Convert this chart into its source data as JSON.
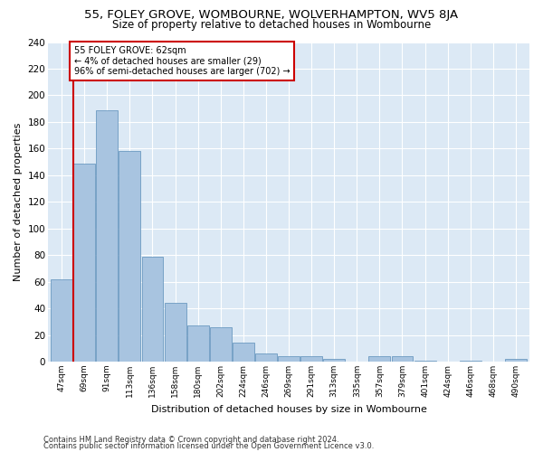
{
  "title": "55, FOLEY GROVE, WOMBOURNE, WOLVERHAMPTON, WV5 8JA",
  "subtitle": "Size of property relative to detached houses in Wombourne",
  "xlabel": "Distribution of detached houses by size in Wombourne",
  "ylabel": "Number of detached properties",
  "footer_line1": "Contains HM Land Registry data © Crown copyright and database right 2024.",
  "footer_line2": "Contains public sector information licensed under the Open Government Licence v3.0.",
  "annotation_title": "55 FOLEY GROVE: 62sqm",
  "annotation_line1": "← 4% of detached houses are smaller (29)",
  "annotation_line2": "96% of semi-detached houses are larger (702) →",
  "bar_labels": [
    "47sqm",
    "69sqm",
    "91sqm",
    "113sqm",
    "136sqm",
    "158sqm",
    "180sqm",
    "202sqm",
    "224sqm",
    "246sqm",
    "269sqm",
    "291sqm",
    "313sqm",
    "335sqm",
    "357sqm",
    "379sqm",
    "401sqm",
    "424sqm",
    "446sqm",
    "468sqm",
    "490sqm"
  ],
  "bar_values": [
    62,
    149,
    189,
    158,
    79,
    44,
    27,
    26,
    14,
    6,
    4,
    4,
    2,
    0,
    4,
    4,
    1,
    0,
    1,
    0,
    2
  ],
  "bar_color": "#a8c4e0",
  "bar_edge_color": "#5b8db8",
  "background_color": "#dce9f5",
  "grid_color": "#ffffff",
  "redline_color": "#cc0000",
  "ylim": [
    0,
    240
  ],
  "yticks": [
    0,
    20,
    40,
    60,
    80,
    100,
    120,
    140,
    160,
    180,
    200,
    220,
    240
  ]
}
